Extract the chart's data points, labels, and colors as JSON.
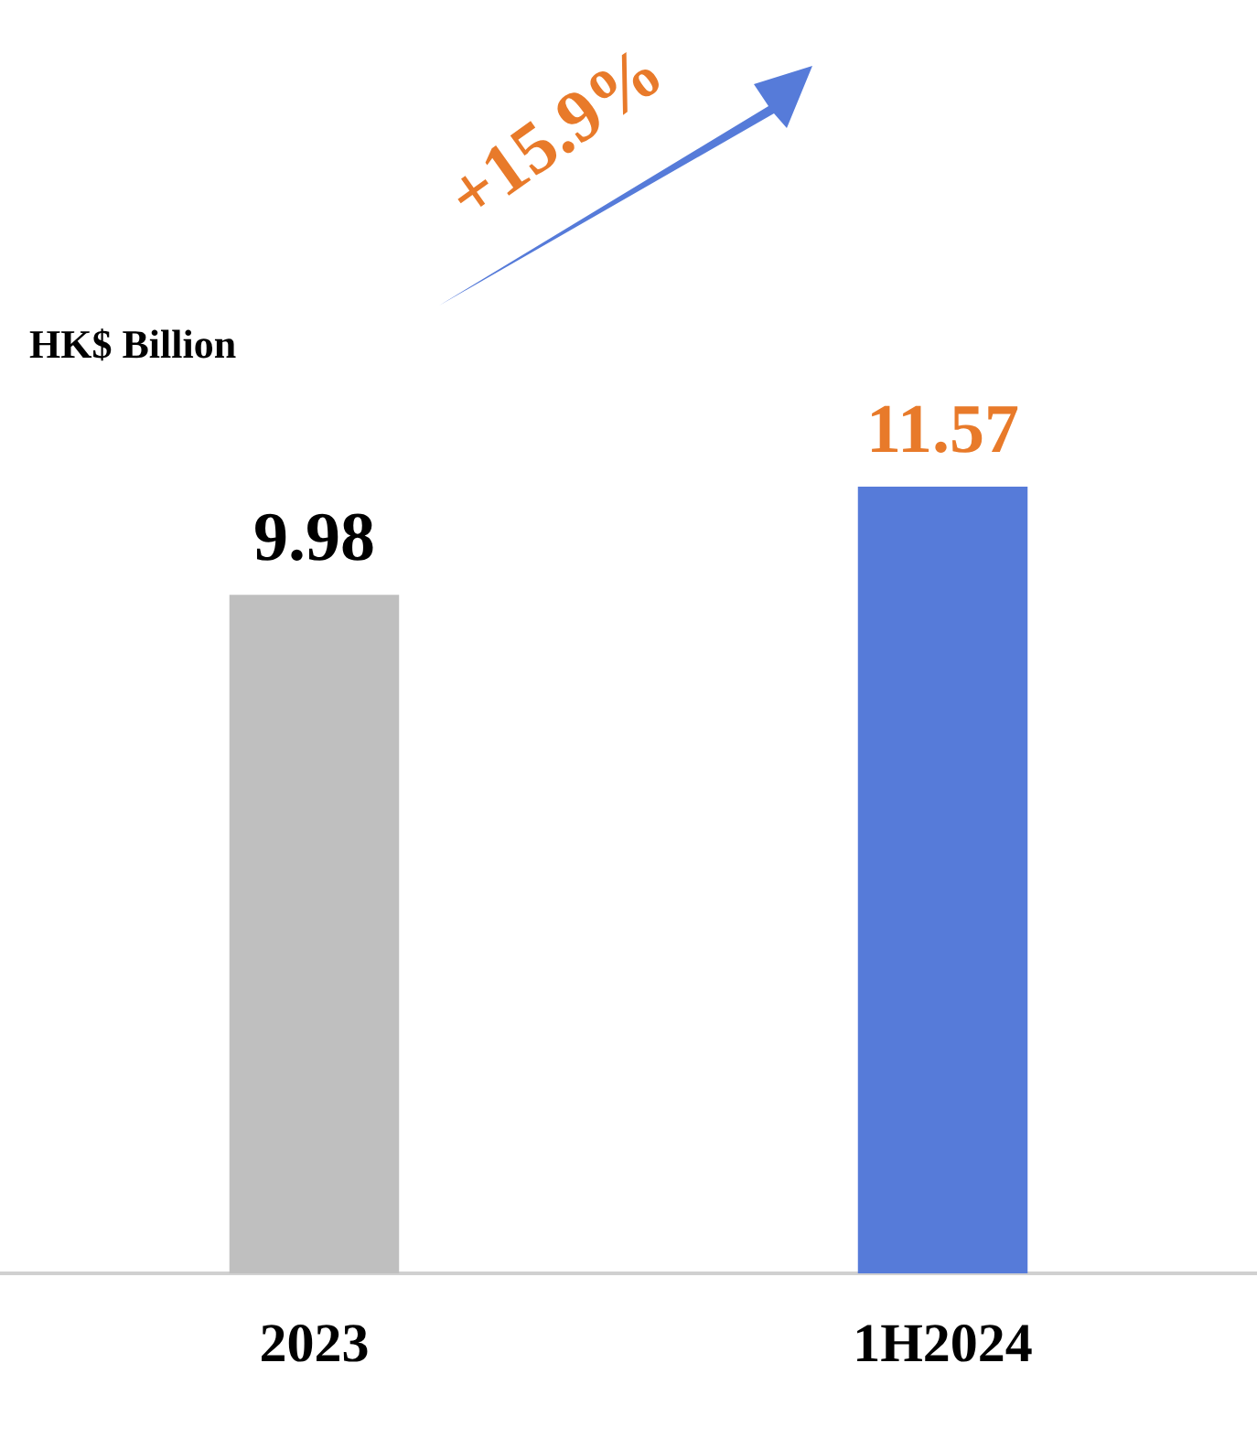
{
  "chart_data": {
    "type": "bar",
    "ylabel": "HK$ Billion",
    "categories": [
      "2023",
      "1H2024"
    ],
    "values": [
      9.98,
      11.57
    ],
    "colors": [
      "#bfbfbf",
      "#567bd9"
    ],
    "data_labels": true,
    "grid": false,
    "annotations": [
      "+15.9%"
    ]
  }
}
